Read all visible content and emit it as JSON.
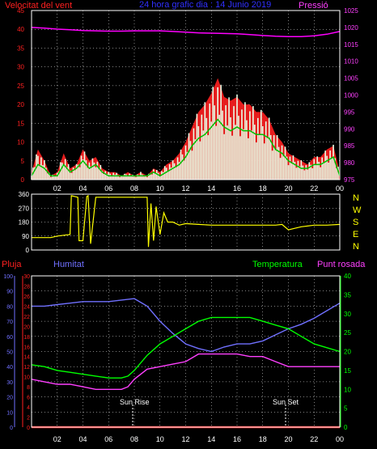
{
  "colors": {
    "background": "#000000",
    "frame": "#ffffff",
    "grid": "#ffffff",
    "wind_speed": "#ff2020",
    "wind_gust": "#ff2020",
    "wind_mean": "#00c000",
    "wind_avg_fill": "#e8ffe8",
    "pressure": "#ff00ff",
    "direction": "#ffff00",
    "rain": "#ff2020",
    "humidity": "#7070ff",
    "temperature": "#00ff00",
    "dewpoint": "#ff40ff",
    "sun_marker": "#ffffff",
    "title": "#3030ff"
  },
  "top_chart": {
    "left_title": "Velocitat del vent",
    "center_title": "24 hora grafic dia : 14 Junio 2019",
    "right_title": "Pressió"
  },
  "bottom_chart": {
    "labels": {
      "rain": "Pluja",
      "humidity": "Humitat",
      "temperature": "Temperatura",
      "dewpoint": "Punt rosada"
    },
    "sun_rise_label": "Sun Rise",
    "sun_set_label": "Sun Set"
  },
  "compass_letters": [
    "N",
    "W",
    "S",
    "E",
    "N"
  ],
  "chart_data": [
    {
      "type": "line",
      "title": "24 hora grafic dia : 14 Junio 2019",
      "xlabel": "",
      "xlim": [
        0,
        24
      ],
      "x_ticks": [
        "02",
        "04",
        "06",
        "08",
        "10",
        "12",
        "14",
        "16",
        "18",
        "20",
        "22",
        "00"
      ],
      "y_left": {
        "label": "Velocitat del vent",
        "range": [
          0,
          45
        ],
        "ticks": [
          "0",
          "5",
          "10",
          "15",
          "20",
          "25",
          "30",
          "35",
          "40",
          "45"
        ]
      },
      "y_right": {
        "label": "Pressió",
        "range": [
          975,
          1025
        ],
        "ticks": [
          "975",
          "980",
          "985",
          "990",
          "995",
          "1000",
          "1005",
          "1010",
          "1015",
          "1020",
          "1025"
        ]
      },
      "grid": true,
      "series": [
        {
          "name": "Pressió",
          "axis": "right",
          "x": [
            0,
            1,
            2,
            3,
            4,
            5,
            6,
            7,
            8,
            9,
            10,
            11,
            12,
            13,
            14,
            15,
            16,
            17,
            18,
            19,
            20,
            21,
            22,
            23,
            24
          ],
          "values": [
            1020,
            1019.8,
            1019.5,
            1019.3,
            1019.1,
            1019,
            1018.9,
            1018.9,
            1019,
            1019,
            1019,
            1018.8,
            1018.6,
            1018.4,
            1018.3,
            1018.2,
            1018.1,
            1017.9,
            1017.6,
            1017.4,
            1017.3,
            1017.3,
            1017.5,
            1018,
            1018.8
          ]
        },
        {
          "name": "gust",
          "axis": "left",
          "x": [
            0,
            0.5,
            1,
            1.5,
            2,
            2.5,
            3,
            3.5,
            4,
            4.5,
            5,
            5.5,
            6,
            6.5,
            7,
            7.5,
            8,
            8.5,
            9,
            9.5,
            10,
            10.5,
            11,
            11.5,
            12,
            12.5,
            13,
            13.5,
            14,
            14.5,
            15,
            15.5,
            16,
            16.5,
            17,
            17.5,
            18,
            18.5,
            19,
            19.5,
            20,
            20.5,
            21,
            21.5,
            22,
            22.5,
            23,
            23.5,
            24
          ],
          "values": [
            2,
            8,
            5,
            1,
            2,
            7,
            3,
            4,
            8,
            5,
            6,
            3,
            2,
            2,
            1,
            2,
            1,
            2,
            1,
            3,
            2,
            4,
            5,
            7,
            10,
            14,
            18,
            20,
            23,
            27,
            22,
            21,
            22,
            20,
            20,
            18,
            18,
            16,
            12,
            10,
            7,
            6,
            5,
            4,
            6,
            6,
            8,
            9,
            2
          ]
        },
        {
          "name": "mean",
          "axis": "left",
          "x": [
            0,
            0.5,
            1,
            1.5,
            2,
            2.5,
            3,
            3.5,
            4,
            4.5,
            5,
            5.5,
            6,
            6.5,
            7,
            7.5,
            8,
            8.5,
            9,
            9.5,
            10,
            10.5,
            11,
            11.5,
            12,
            12.5,
            13,
            13.5,
            14,
            14.5,
            15,
            15.5,
            16,
            16.5,
            17,
            17.5,
            18,
            18.5,
            19,
            19.5,
            20,
            20.5,
            21,
            21.5,
            22,
            22.5,
            23,
            23.5,
            24
          ],
          "values": [
            1,
            4,
            3,
            1,
            1,
            4,
            2,
            3,
            5,
            3,
            4,
            2,
            1,
            1,
            1,
            1,
            1,
            1,
            1,
            2,
            1,
            2,
            3,
            4,
            6,
            9,
            11,
            12,
            14,
            16,
            14,
            13,
            14,
            13,
            13,
            12,
            12,
            11,
            8,
            7,
            5,
            4,
            3,
            3,
            4,
            4,
            5,
            6,
            1
          ]
        }
      ]
    },
    {
      "type": "line",
      "title": "",
      "xlim": [
        0,
        24
      ],
      "y_left": {
        "range": [
          0,
          360
        ],
        "ticks": [
          "0",
          "90",
          "180",
          "270",
          "360"
        ]
      },
      "y_right_ticks": [
        "N",
        "W",
        "S",
        "E",
        "N"
      ],
      "grid": true,
      "series": [
        {
          "name": "",
          "x": [
            0,
            1,
            1.5,
            2,
            2.5,
            3,
            3.1,
            3.6,
            3.7,
            4,
            4.3,
            4.4,
            4.6,
            5,
            6,
            7,
            8,
            8.5,
            9,
            9.1,
            9.3,
            9.5,
            9.7,
            10,
            10.3,
            10.6,
            11,
            11.5,
            12,
            13,
            14,
            15,
            16,
            17,
            18,
            19,
            19.5,
            20,
            20.5,
            21,
            22,
            23,
            24
          ],
          "values": [
            80,
            80,
            80,
            90,
            95,
            100,
            350,
            340,
            60,
            60,
            345,
            350,
            40,
            340,
            340,
            340,
            340,
            340,
            340,
            20,
            300,
            60,
            280,
            100,
            240,
            180,
            180,
            160,
            170,
            165,
            160,
            160,
            160,
            160,
            160,
            160,
            165,
            130,
            140,
            150,
            160,
            160,
            165
          ]
        }
      ]
    },
    {
      "type": "line",
      "title": "",
      "xlim": [
        0,
        24
      ],
      "x_ticks": [
        "02",
        "04",
        "06",
        "08",
        "10",
        "12",
        "14",
        "16",
        "18",
        "20",
        "22",
        "00"
      ],
      "y_axes": [
        {
          "label": "Pluja",
          "range": [
            0,
            30
          ],
          "ticks": [
            "0",
            "2",
            "4",
            "6",
            "8",
            "10",
            "12",
            "14",
            "16",
            "18",
            "20",
            "22",
            "24",
            "26",
            "28",
            "30"
          ]
        },
        {
          "label": "Humitat",
          "range": [
            0,
            100
          ],
          "ticks": [
            "0",
            "10",
            "20",
            "30",
            "40",
            "50",
            "60",
            "70",
            "80",
            "90",
            "100"
          ]
        },
        {
          "label": "Temperatura",
          "range": [
            0,
            40
          ],
          "ticks": [
            "0",
            "5",
            "10",
            "15",
            "20",
            "25",
            "30",
            "35",
            "40"
          ]
        }
      ],
      "grid": true,
      "series": [
        {
          "name": "Pluja",
          "axis": "Pluja",
          "x": [
            0,
            24
          ],
          "values": [
            0,
            0
          ]
        },
        {
          "name": "Humitat",
          "axis": "Humitat",
          "x": [
            0,
            1,
            2,
            3,
            4,
            5,
            6,
            7,
            8,
            9,
            10,
            11,
            12,
            13,
            14,
            15,
            16,
            17,
            18,
            19,
            20,
            21,
            22,
            23,
            24
          ],
          "values": [
            80,
            80,
            81,
            82,
            83,
            83,
            83,
            84,
            85,
            80,
            70,
            62,
            55,
            52,
            50,
            53,
            55,
            55,
            57,
            61,
            65,
            68,
            72,
            77,
            82
          ]
        },
        {
          "name": "Temperatura",
          "axis": "Temperatura",
          "x": [
            0,
            1,
            2,
            3,
            4,
            5,
            6,
            7,
            7.5,
            8,
            9,
            10,
            11,
            12,
            13,
            14,
            15,
            16,
            17,
            18,
            19,
            20,
            21,
            22,
            23,
            24
          ],
          "values": [
            16.5,
            16,
            15,
            14.5,
            14,
            13.5,
            13,
            13,
            13.5,
            15,
            19,
            22,
            24,
            26,
            28,
            29,
            29,
            29,
            29,
            28,
            27,
            26,
            24,
            22,
            21,
            20
          ]
        },
        {
          "name": "Punt rosada",
          "axis": "Pluja",
          "x": [
            0,
            1,
            2,
            3,
            4,
            5,
            6,
            7,
            7.5,
            8,
            9,
            10,
            11,
            12,
            13,
            14,
            15,
            16,
            17,
            18,
            19,
            20,
            21,
            22,
            23,
            24
          ],
          "values": [
            9.5,
            9,
            8.5,
            8.5,
            8,
            7.5,
            7.5,
            7.5,
            8,
            9.5,
            11.5,
            12,
            12.5,
            13,
            14.5,
            14.5,
            14.5,
            14.5,
            14,
            14,
            13,
            12,
            12,
            12,
            12,
            12
          ]
        }
      ],
      "annotations": [
        "Sun Rise",
        "Sun Set"
      ]
    }
  ]
}
